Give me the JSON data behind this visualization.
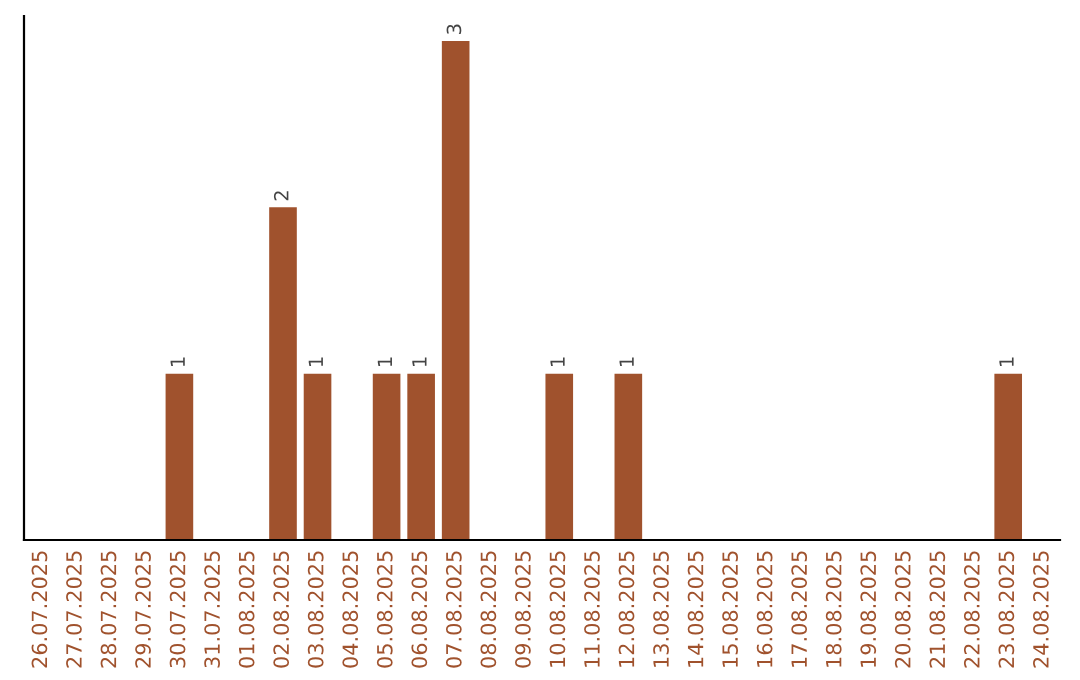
{
  "chart_data": {
    "type": "bar",
    "categories": [
      "26.07.2025",
      "27.07.2025",
      "28.07.2025",
      "29.07.2025",
      "30.07.2025",
      "31.07.2025",
      "01.08.2025",
      "02.08.2025",
      "03.08.2025",
      "04.08.2025",
      "05.08.2025",
      "06.08.2025",
      "07.08.2025",
      "08.08.2025",
      "09.08.2025",
      "10.08.2025",
      "11.08.2025",
      "12.08.2025",
      "13.08.2025",
      "14.08.2025",
      "15.08.2025",
      "16.08.2025",
      "17.08.2025",
      "18.08.2025",
      "19.08.2025",
      "20.08.2025",
      "21.08.2025",
      "22.08.2025",
      "23.08.2025",
      "24.08.2025"
    ],
    "values": [
      0,
      0,
      0,
      0,
      1,
      0,
      0,
      2,
      1,
      0,
      1,
      1,
      3,
      0,
      0,
      1,
      0,
      1,
      0,
      0,
      0,
      0,
      0,
      0,
      0,
      0,
      0,
      0,
      1,
      0
    ],
    "value_labels": [
      null,
      null,
      null,
      null,
      "1",
      null,
      null,
      "2",
      "1",
      null,
      "1",
      "1",
      "3",
      null,
      null,
      "1",
      null,
      "1",
      null,
      null,
      null,
      null,
      null,
      null,
      null,
      null,
      null,
      null,
      "1",
      null
    ],
    "color": "#a0522d",
    "grid": false,
    "tick_labels": "x"
  }
}
